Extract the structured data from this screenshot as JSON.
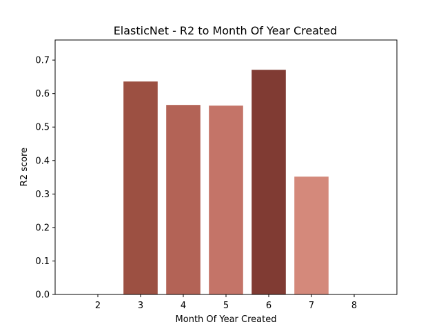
{
  "chart_data": {
    "type": "bar",
    "title": "ElasticNet - R2 to Month Of Year Created",
    "xlabel": "Month Of Year Created",
    "ylabel": "R2 score",
    "categories": [
      "3",
      "4",
      "5",
      "6",
      "7"
    ],
    "x": [
      3,
      4,
      5,
      6,
      7
    ],
    "values": [
      0.636,
      0.566,
      0.564,
      0.671,
      0.352
    ],
    "colors": [
      "#9c5042",
      "#b36356",
      "#c47468",
      "#803b33",
      "#d4897b"
    ],
    "xlim": [
      1,
      9
    ],
    "ylim": [
      0,
      0.76
    ],
    "xticks": [
      "2",
      "3",
      "4",
      "5",
      "6",
      "7",
      "8"
    ],
    "xtick_values": [
      2,
      3,
      4,
      5,
      6,
      7,
      8
    ],
    "yticks": [
      "0.0",
      "0.1",
      "0.2",
      "0.3",
      "0.4",
      "0.5",
      "0.6",
      "0.7"
    ],
    "ytick_values": [
      0,
      0.1,
      0.2,
      0.3,
      0.4,
      0.5,
      0.6,
      0.7
    ],
    "grid": false,
    "legend": "none"
  }
}
